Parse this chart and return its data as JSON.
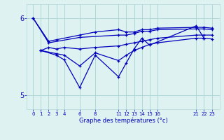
{
  "xlabel": "Graphe des températures (°c)",
  "bg_color": "#dff2f2",
  "line_color": "#0000bb",
  "grid_color": "#b0d8d8",
  "ylim": [
    4.82,
    6.18
  ],
  "yticks": [
    5.0,
    6.0
  ],
  "xlim": [
    -0.8,
    24.0
  ],
  "xtick_vals": [
    0,
    1,
    2,
    3,
    4,
    6,
    8,
    11,
    12,
    13,
    14,
    15,
    16,
    21,
    22,
    23
  ],
  "series": [
    {
      "x": [
        0,
        2,
        3,
        6,
        8,
        11,
        12,
        13,
        14,
        15,
        16,
        21,
        22,
        23
      ],
      "y": [
        6.0,
        5.7,
        5.72,
        5.78,
        5.82,
        5.85,
        5.82,
        5.82,
        5.85,
        5.85,
        5.87,
        5.88,
        5.88,
        5.87
      ]
    },
    {
      "x": [
        0,
        2,
        6,
        11,
        12,
        13,
        14,
        15,
        16,
        21,
        22,
        23
      ],
      "y": [
        6.0,
        5.68,
        5.75,
        5.78,
        5.78,
        5.8,
        5.83,
        5.83,
        5.85,
        5.86,
        5.86,
        5.85
      ]
    },
    {
      "x": [
        1,
        2,
        3,
        4,
        6,
        8,
        11,
        12,
        13,
        14,
        15,
        16,
        21,
        22,
        23
      ],
      "y": [
        5.58,
        5.62,
        5.6,
        5.62,
        5.6,
        5.62,
        5.64,
        5.66,
        5.68,
        5.7,
        5.72,
        5.74,
        5.78,
        5.78,
        5.78
      ]
    },
    {
      "x": [
        1,
        3,
        4,
        6,
        8,
        11,
        12,
        13,
        14,
        15,
        16,
        21,
        22,
        23
      ],
      "y": [
        5.58,
        5.54,
        5.52,
        5.38,
        5.55,
        5.45,
        5.52,
        5.58,
        5.62,
        5.66,
        5.68,
        5.74,
        5.74,
        5.73
      ]
    },
    {
      "x": [
        1,
        3,
        4,
        6,
        8,
        11,
        12,
        13,
        14,
        15,
        21,
        22
      ],
      "y": [
        5.58,
        5.52,
        5.46,
        5.1,
        5.52,
        5.24,
        5.42,
        5.6,
        5.74,
        5.65,
        5.9,
        5.74
      ]
    }
  ]
}
